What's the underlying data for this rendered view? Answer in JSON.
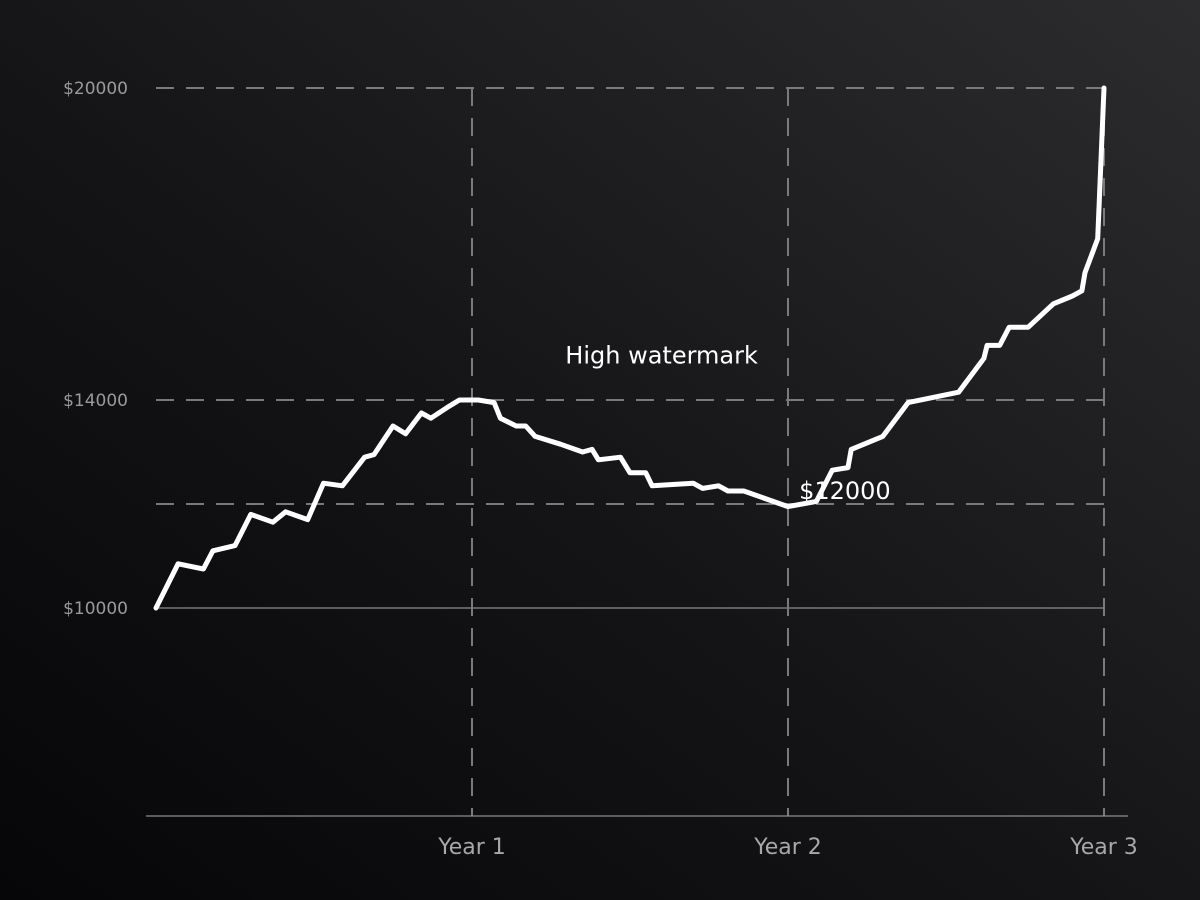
{
  "chart_data": {
    "type": "line",
    "title": "",
    "xlabel": "",
    "ylabel": "",
    "x_ticks": [
      {
        "label": "Year 1",
        "value": 1
      },
      {
        "label": "Year 2",
        "value": 2
      },
      {
        "label": "Year 3",
        "value": 3
      }
    ],
    "y_ticks": [
      {
        "label": "$10000",
        "value": 10000
      },
      {
        "label": "$14000",
        "value": 14000
      },
      {
        "label": "$20000",
        "value": 20000
      }
    ],
    "xlim": [
      0,
      3
    ],
    "ylim": [
      6000,
      20000
    ],
    "grid": true,
    "reference_lines": {
      "horizontal_dashed": [
        20000,
        14000,
        12000
      ],
      "horizontal_solid": [
        10000
      ],
      "vertical_dashed": [
        1,
        2,
        3
      ]
    },
    "annotations": [
      {
        "text": "High watermark",
        "x": 1.6,
        "y": 14700
      },
      {
        "text": "$12000",
        "x": 2.18,
        "y": 12100
      }
    ],
    "series": [
      {
        "color": "#ffffff",
        "points": [
          [
            0.0,
            10000
          ],
          [
            0.07,
            10850
          ],
          [
            0.15,
            10750
          ],
          [
            0.18,
            11100
          ],
          [
            0.25,
            11200
          ],
          [
            0.3,
            11800
          ],
          [
            0.37,
            11650
          ],
          [
            0.41,
            11850
          ],
          [
            0.48,
            11700
          ],
          [
            0.53,
            12400
          ],
          [
            0.59,
            12350
          ],
          [
            0.66,
            12900
          ],
          [
            0.69,
            12950
          ],
          [
            0.75,
            13500
          ],
          [
            0.79,
            13350
          ],
          [
            0.84,
            13750
          ],
          [
            0.87,
            13650
          ],
          [
            0.92,
            13850
          ],
          [
            0.96,
            14000
          ],
          [
            1.02,
            14000
          ],
          [
            1.07,
            13950
          ],
          [
            1.09,
            13650
          ],
          [
            1.14,
            13500
          ],
          [
            1.17,
            13500
          ],
          [
            1.2,
            13300
          ],
          [
            1.28,
            13150
          ],
          [
            1.35,
            13000
          ],
          [
            1.38,
            13050
          ],
          [
            1.4,
            12850
          ],
          [
            1.47,
            12900
          ],
          [
            1.5,
            12600
          ],
          [
            1.55,
            12600
          ],
          [
            1.57,
            12350
          ],
          [
            1.7,
            12400
          ],
          [
            1.73,
            12300
          ],
          [
            1.78,
            12350
          ],
          [
            1.81,
            12250
          ],
          [
            1.86,
            12250
          ],
          [
            2.0,
            11950
          ],
          [
            2.09,
            12050
          ],
          [
            2.14,
            12650
          ],
          [
            2.19,
            12700
          ],
          [
            2.2,
            13050
          ],
          [
            2.3,
            13300
          ],
          [
            2.38,
            13950
          ],
          [
            2.54,
            14150
          ],
          [
            2.62,
            14800
          ],
          [
            2.63,
            15050
          ],
          [
            2.67,
            15050
          ],
          [
            2.7,
            15400
          ],
          [
            2.76,
            15400
          ],
          [
            2.84,
            15850
          ],
          [
            2.9,
            16000
          ],
          [
            2.93,
            16100
          ],
          [
            2.94,
            16450
          ],
          [
            2.98,
            17100
          ],
          [
            3.0,
            20000
          ]
        ]
      }
    ]
  }
}
